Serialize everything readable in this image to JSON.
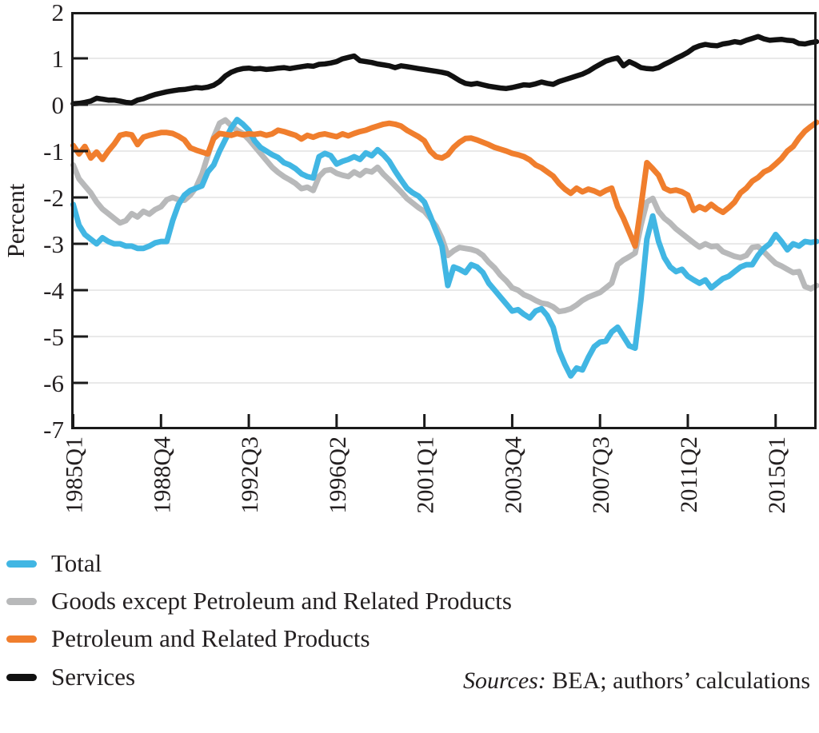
{
  "figure": {
    "y_axis_label": "Percent",
    "source": {
      "prefix": "Sources:",
      "rest": " BEA; authors’ calculations"
    }
  },
  "chart_data": {
    "type": "line",
    "title": "",
    "xlabel": "",
    "ylabel": "Percent",
    "ylim": [
      -7,
      2
    ],
    "y_ticks": [
      2,
      1,
      0,
      -1,
      -2,
      -3,
      -4,
      -5,
      -6,
      -7
    ],
    "grid": "horizontal",
    "legend_position": "below-left",
    "x_start": "1985Q1",
    "x_end": "2016Q4",
    "frequency": "quarterly",
    "x_tick_labels": [
      "1985Q1",
      "1988Q4",
      "1992Q3",
      "1996Q2",
      "2001Q1",
      "2003Q4",
      "2007Q3",
      "2011Q2",
      "2015Q1"
    ],
    "x_tick_indices": [
      0,
      15,
      30,
      45,
      60,
      75,
      90,
      105,
      120
    ],
    "draw_order": [
      1,
      0,
      2,
      3
    ],
    "series": [
      {
        "name": "Total",
        "color": "#41b6e3",
        "values": [
          -2.15,
          -2.6,
          -2.8,
          -2.9,
          -3.0,
          -2.87,
          -2.95,
          -3.0,
          -3.0,
          -3.05,
          -3.05,
          -3.1,
          -3.1,
          -3.05,
          -2.98,
          -2.95,
          -2.95,
          -2.5,
          -2.15,
          -1.95,
          -1.85,
          -1.8,
          -1.75,
          -1.45,
          -1.3,
          -1.0,
          -0.75,
          -0.5,
          -0.32,
          -0.42,
          -0.55,
          -0.78,
          -0.92,
          -1.0,
          -1.08,
          -1.14,
          -1.25,
          -1.3,
          -1.38,
          -1.49,
          -1.55,
          -1.58,
          -1.12,
          -1.05,
          -1.1,
          -1.28,
          -1.22,
          -1.18,
          -1.12,
          -1.18,
          -1.04,
          -1.1,
          -0.97,
          -1.08,
          -1.22,
          -1.43,
          -1.62,
          -1.8,
          -1.9,
          -1.97,
          -2.1,
          -2.4,
          -2.73,
          -3.05,
          -3.9,
          -3.5,
          -3.55,
          -3.62,
          -3.45,
          -3.5,
          -3.62,
          -3.85,
          -4.0,
          -4.15,
          -4.3,
          -4.45,
          -4.42,
          -4.52,
          -4.6,
          -4.45,
          -4.4,
          -4.55,
          -4.8,
          -5.3,
          -5.6,
          -5.85,
          -5.68,
          -5.72,
          -5.45,
          -5.22,
          -5.12,
          -5.1,
          -4.9,
          -4.8,
          -5.0,
          -5.2,
          -5.25,
          -4.2,
          -2.9,
          -2.4,
          -2.95,
          -3.3,
          -3.5,
          -3.6,
          -3.55,
          -3.7,
          -3.78,
          -3.85,
          -3.78,
          -3.95,
          -3.85,
          -3.75,
          -3.7,
          -3.6,
          -3.5,
          -3.45,
          -3.45,
          -3.25,
          -3.1,
          -3.0,
          -2.8,
          -2.95,
          -3.13,
          -3.0,
          -3.05,
          -2.95,
          -2.97,
          -2.95
        ]
      },
      {
        "name": "Goods except Petroleum and Related Products",
        "color": "#b8b9ba",
        "values": [
          -1.3,
          -1.6,
          -1.75,
          -1.9,
          -2.1,
          -2.25,
          -2.35,
          -2.45,
          -2.55,
          -2.5,
          -2.35,
          -2.42,
          -2.3,
          -2.36,
          -2.26,
          -2.2,
          -2.05,
          -2.0,
          -2.05,
          -2.06,
          -1.95,
          -1.78,
          -1.5,
          -1.1,
          -0.7,
          -0.4,
          -0.33,
          -0.45,
          -0.55,
          -0.62,
          -0.75,
          -0.9,
          -1.05,
          -1.2,
          -1.35,
          -1.46,
          -1.55,
          -1.62,
          -1.7,
          -1.81,
          -1.78,
          -1.85,
          -1.55,
          -1.42,
          -1.4,
          -1.48,
          -1.52,
          -1.55,
          -1.45,
          -1.52,
          -1.42,
          -1.45,
          -1.35,
          -1.5,
          -1.62,
          -1.75,
          -1.88,
          -2.02,
          -2.12,
          -2.22,
          -2.3,
          -2.45,
          -2.62,
          -2.88,
          -3.25,
          -3.15,
          -3.08,
          -3.1,
          -3.12,
          -3.16,
          -3.25,
          -3.4,
          -3.52,
          -3.68,
          -3.8,
          -3.95,
          -4.0,
          -4.1,
          -4.15,
          -4.22,
          -4.28,
          -4.3,
          -4.36,
          -4.46,
          -4.44,
          -4.4,
          -4.32,
          -4.22,
          -4.15,
          -4.1,
          -4.05,
          -3.95,
          -3.85,
          -3.45,
          -3.35,
          -3.28,
          -3.2,
          -2.6,
          -2.1,
          -2.02,
          -2.3,
          -2.45,
          -2.55,
          -2.68,
          -2.78,
          -2.88,
          -2.98,
          -3.07,
          -3.0,
          -3.06,
          -3.05,
          -3.17,
          -3.22,
          -3.27,
          -3.3,
          -3.25,
          -3.08,
          -3.06,
          -3.17,
          -3.3,
          -3.42,
          -3.48,
          -3.55,
          -3.62,
          -3.6,
          -3.92,
          -3.97,
          -3.9
        ]
      },
      {
        "name": "Petroleum and Related Products",
        "color": "#f07e2d",
        "values": [
          -0.88,
          -1.06,
          -0.9,
          -1.15,
          -1.02,
          -1.18,
          -1.0,
          -0.85,
          -0.66,
          -0.63,
          -0.65,
          -0.86,
          -0.7,
          -0.66,
          -0.63,
          -0.6,
          -0.6,
          -0.62,
          -0.68,
          -0.76,
          -0.93,
          -0.98,
          -1.02,
          -1.06,
          -0.73,
          -0.62,
          -0.64,
          -0.66,
          -0.62,
          -0.65,
          -0.63,
          -0.64,
          -0.62,
          -0.66,
          -0.63,
          -0.55,
          -0.58,
          -0.62,
          -0.66,
          -0.74,
          -0.66,
          -0.7,
          -0.65,
          -0.63,
          -0.66,
          -0.69,
          -0.63,
          -0.67,
          -0.62,
          -0.58,
          -0.55,
          -0.5,
          -0.46,
          -0.42,
          -0.4,
          -0.42,
          -0.46,
          -0.55,
          -0.62,
          -0.69,
          -0.78,
          -1.0,
          -1.12,
          -1.15,
          -1.08,
          -0.92,
          -0.81,
          -0.73,
          -0.72,
          -0.76,
          -0.81,
          -0.86,
          -0.92,
          -0.96,
          -1.0,
          -1.05,
          -1.08,
          -1.12,
          -1.19,
          -1.3,
          -1.36,
          -1.45,
          -1.54,
          -1.7,
          -1.82,
          -1.91,
          -1.8,
          -1.88,
          -1.82,
          -1.86,
          -1.92,
          -1.85,
          -1.8,
          -2.2,
          -2.45,
          -2.75,
          -3.05,
          -2.2,
          -1.25,
          -1.38,
          -1.52,
          -1.8,
          -1.86,
          -1.84,
          -1.88,
          -1.95,
          -2.28,
          -2.2,
          -2.26,
          -2.15,
          -2.25,
          -2.32,
          -2.22,
          -2.1,
          -1.9,
          -1.8,
          -1.65,
          -1.57,
          -1.45,
          -1.39,
          -1.28,
          -1.16,
          -1.0,
          -0.9,
          -0.72,
          -0.57,
          -0.47,
          -0.38
        ]
      },
      {
        "name": "Services",
        "color": "#111111",
        "values": [
          0.02,
          0.03,
          0.05,
          0.08,
          0.14,
          0.12,
          0.1,
          0.1,
          0.08,
          0.05,
          0.04,
          0.1,
          0.13,
          0.18,
          0.22,
          0.25,
          0.28,
          0.3,
          0.32,
          0.33,
          0.35,
          0.37,
          0.36,
          0.38,
          0.42,
          0.5,
          0.62,
          0.7,
          0.75,
          0.78,
          0.79,
          0.77,
          0.78,
          0.76,
          0.77,
          0.79,
          0.8,
          0.78,
          0.8,
          0.82,
          0.84,
          0.83,
          0.87,
          0.88,
          0.9,
          0.93,
          0.99,
          1.02,
          1.05,
          0.95,
          0.93,
          0.91,
          0.88,
          0.86,
          0.84,
          0.8,
          0.84,
          0.82,
          0.8,
          0.78,
          0.76,
          0.74,
          0.72,
          0.7,
          0.67,
          0.6,
          0.52,
          0.46,
          0.44,
          0.46,
          0.43,
          0.4,
          0.38,
          0.36,
          0.35,
          0.37,
          0.4,
          0.43,
          0.42,
          0.45,
          0.49,
          0.46,
          0.44,
          0.5,
          0.54,
          0.58,
          0.62,
          0.66,
          0.72,
          0.8,
          0.87,
          0.94,
          0.98,
          1.01,
          0.84,
          0.93,
          0.87,
          0.8,
          0.78,
          0.77,
          0.8,
          0.87,
          0.93,
          1.0,
          1.06,
          1.13,
          1.22,
          1.27,
          1.3,
          1.28,
          1.27,
          1.31,
          1.33,
          1.36,
          1.34,
          1.39,
          1.43,
          1.47,
          1.42,
          1.39,
          1.4,
          1.41,
          1.39,
          1.38,
          1.32,
          1.31,
          1.34,
          1.36
        ]
      }
    ],
    "style": {
      "gridline_color": "#e6e6e6",
      "zero_line_color": "#9c9c9c",
      "frame_color": "#1a1a1a",
      "line_width": 7,
      "services_line_width": 6.5
    }
  }
}
